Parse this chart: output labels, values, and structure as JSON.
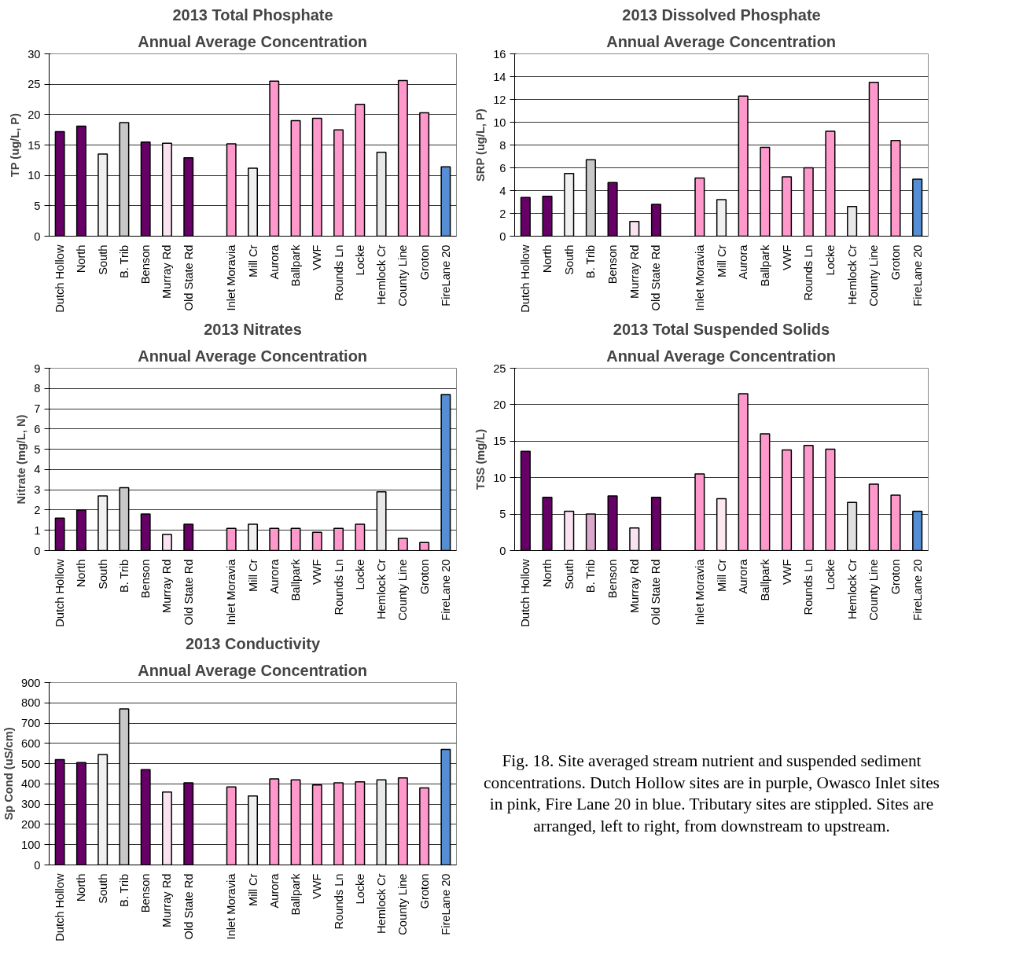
{
  "chart_data": [
    {
      "type": "bar",
      "title": "2013 Total Phosphate",
      "subtitle": "Annual Average Concentration",
      "ylabel": "TP (ug/L, P)",
      "categories": [
        "Dutch Hollow",
        "North",
        "South",
        "B. Trib",
        "Benson",
        "Murray Rd",
        "Old State Rd",
        null,
        "Inlet Moravia",
        "Mill Cr",
        "Aurora",
        "Ballpark",
        "VWF",
        "Rounds Ln",
        "Locke",
        "Hemlock Cr",
        "County Line",
        "Groton",
        "FireLane 20"
      ],
      "values": [
        17.2,
        18.1,
        13.5,
        18.7,
        15.5,
        15.3,
        12.9,
        null,
        15.2,
        11.2,
        25.5,
        19.0,
        19.4,
        17.5,
        21.7,
        13.8,
        25.6,
        20.3,
        11.4
      ],
      "colors": [
        "#660066",
        "#660066",
        "#f0f0f0",
        "#c8c8c8",
        "#660066",
        "#fae3f1",
        "#660066",
        null,
        "#ff99cc",
        "#f0f0f0",
        "#ff99cc",
        "#ff99cc",
        "#ff99cc",
        "#ff99cc",
        "#ff99cc",
        "#e8e8e8",
        "#ff99cc",
        "#ff99cc",
        "#558ed5"
      ],
      "ylim": [
        0,
        30
      ],
      "yticks": [
        0,
        5,
        10,
        15,
        20,
        25,
        30
      ],
      "grid": "y"
    },
    {
      "type": "bar",
      "title": "2013 Dissolved Phosphate",
      "subtitle": "Annual Average Concentration",
      "ylabel": "SRP (ug/L, P)",
      "categories": [
        "Dutch Hollow",
        "North",
        "South",
        "B. Trib",
        "Benson",
        "Murray Rd",
        "Old State Rd",
        null,
        "Inlet Moravia",
        "Mill Cr",
        "Aurora",
        "Ballpark",
        "VWF",
        "Rounds Ln",
        "Locke",
        "Hemlock Cr",
        "County Line",
        "Groton",
        "FireLane 20"
      ],
      "values": [
        3.4,
        3.5,
        5.5,
        6.7,
        4.7,
        1.3,
        2.8,
        null,
        5.1,
        3.2,
        12.3,
        7.8,
        5.2,
        6.0,
        9.2,
        2.6,
        13.5,
        8.4,
        5.0
      ],
      "colors": [
        "#660066",
        "#660066",
        "#f0f0f0",
        "#c8c8c8",
        "#660066",
        "#fae3f1",
        "#660066",
        null,
        "#ff99cc",
        "#f0f0f0",
        "#ff99cc",
        "#ff99cc",
        "#ff99cc",
        "#ff99cc",
        "#ff99cc",
        "#e8e8e8",
        "#ff99cc",
        "#ff99cc",
        "#558ed5"
      ],
      "ylim": [
        0,
        16
      ],
      "yticks": [
        0,
        2,
        4,
        6,
        8,
        10,
        12,
        14,
        16
      ],
      "grid": "y"
    },
    {
      "type": "bar",
      "title": "2013 Nitrates",
      "subtitle": "Annual Average Concentration",
      "ylabel": "Nitrate (mg/L, N)",
      "categories": [
        "Dutch Hollow",
        "North",
        "South",
        "B. Trib",
        "Benson",
        "Murray Rd",
        "Old State Rd",
        null,
        "Inlet Moravia",
        "Mill Cr",
        "Aurora",
        "Ballpark",
        "VWF",
        "Rounds Ln",
        "Locke",
        "Hemlock Cr",
        "County Line",
        "Groton",
        "FireLane 20"
      ],
      "values": [
        1.6,
        2.0,
        2.7,
        3.1,
        1.8,
        0.8,
        1.3,
        null,
        1.1,
        1.3,
        1.1,
        1.1,
        0.9,
        1.1,
        1.3,
        2.9,
        0.6,
        0.4,
        7.7
      ],
      "colors": [
        "#660066",
        "#660066",
        "#f0f0f0",
        "#c8c8c8",
        "#660066",
        "#fae3f1",
        "#660066",
        null,
        "#ff99cc",
        "#f0f0f0",
        "#ff99cc",
        "#ff99cc",
        "#ff99cc",
        "#ff99cc",
        "#ff99cc",
        "#e8e8e8",
        "#ff99cc",
        "#ff99cc",
        "#558ed5"
      ],
      "ylim": [
        0,
        9
      ],
      "yticks": [
        0,
        1,
        2,
        3,
        4,
        5,
        6,
        7,
        8,
        9
      ],
      "grid": "y"
    },
    {
      "type": "bar",
      "title": "2013 Total Suspended Solids",
      "subtitle": "Annual Average Concentration",
      "ylabel": "TSS (mg/L)",
      "categories": [
        "Dutch Hollow",
        "North",
        "South",
        "B. Trib",
        "Benson",
        "Murray Rd",
        "Old State Rd",
        null,
        "Inlet Moravia",
        "Mill Cr",
        "Aurora",
        "Ballpark",
        "VWF",
        "Rounds Ln",
        "Locke",
        "Hemlock Cr",
        "County Line",
        "Groton",
        "FireLane 20"
      ],
      "values": [
        13.6,
        7.3,
        5.4,
        5.0,
        7.5,
        3.1,
        7.3,
        null,
        10.5,
        7.1,
        21.5,
        16.0,
        13.8,
        14.4,
        13.9,
        6.6,
        9.1,
        7.6,
        5.4
      ],
      "colors": [
        "#660066",
        "#660066",
        "#fae3f1",
        "#d9a8cc",
        "#660066",
        "#fae3f1",
        "#660066",
        null,
        "#ff99cc",
        "#fde8f2",
        "#ff99cc",
        "#ff99cc",
        "#ff99cc",
        "#ff99cc",
        "#ff99cc",
        "#e0e0e0",
        "#ff99cc",
        "#ff99cc",
        "#558ed5"
      ],
      "ylim": [
        0,
        25
      ],
      "yticks": [
        0,
        5,
        10,
        15,
        20,
        25
      ],
      "grid": "y"
    },
    {
      "type": "bar",
      "title": "2013 Conductivity",
      "subtitle": "Annual Average Concentration",
      "ylabel": "Sp Cond (uS/cm)",
      "categories": [
        "Dutch Hollow",
        "North",
        "South",
        "B. Trib",
        "Benson",
        "Murray Rd",
        "Old State Rd",
        null,
        "Inlet Moravia",
        "Mill Cr",
        "Aurora",
        "Ballpark",
        "VWF",
        "Rounds Ln",
        "Locke",
        "Hemlock Cr",
        "County Line",
        "Groton",
        "FireLane 20"
      ],
      "values": [
        520,
        505,
        545,
        770,
        470,
        360,
        405,
        null,
        385,
        340,
        425,
        420,
        395,
        405,
        410,
        420,
        430,
        380,
        570
      ],
      "colors": [
        "#660066",
        "#660066",
        "#f0f0f0",
        "#c8c8c8",
        "#660066",
        "#fae3f1",
        "#660066",
        null,
        "#ff99cc",
        "#f0f0f0",
        "#ff99cc",
        "#ff99cc",
        "#ff99cc",
        "#ff99cc",
        "#ff99cc",
        "#e8e8e8",
        "#ff99cc",
        "#ff99cc",
        "#558ed5"
      ],
      "ylim": [
        0,
        900
      ],
      "yticks": [
        0,
        100,
        200,
        300,
        400,
        500,
        600,
        700,
        800,
        900
      ],
      "grid": "y",
      "annotations": [
        "Fig. 18. Site averaged stream nutrient and suspended sediment concentrations.  Dutch Hollow sites are in purple, Owasco Inlet sites in pink, Fire Lane 20 in blue.  Tributary sites are stippled.  Sites are arranged, left to right, from downstream to upstream."
      ]
    }
  ]
}
